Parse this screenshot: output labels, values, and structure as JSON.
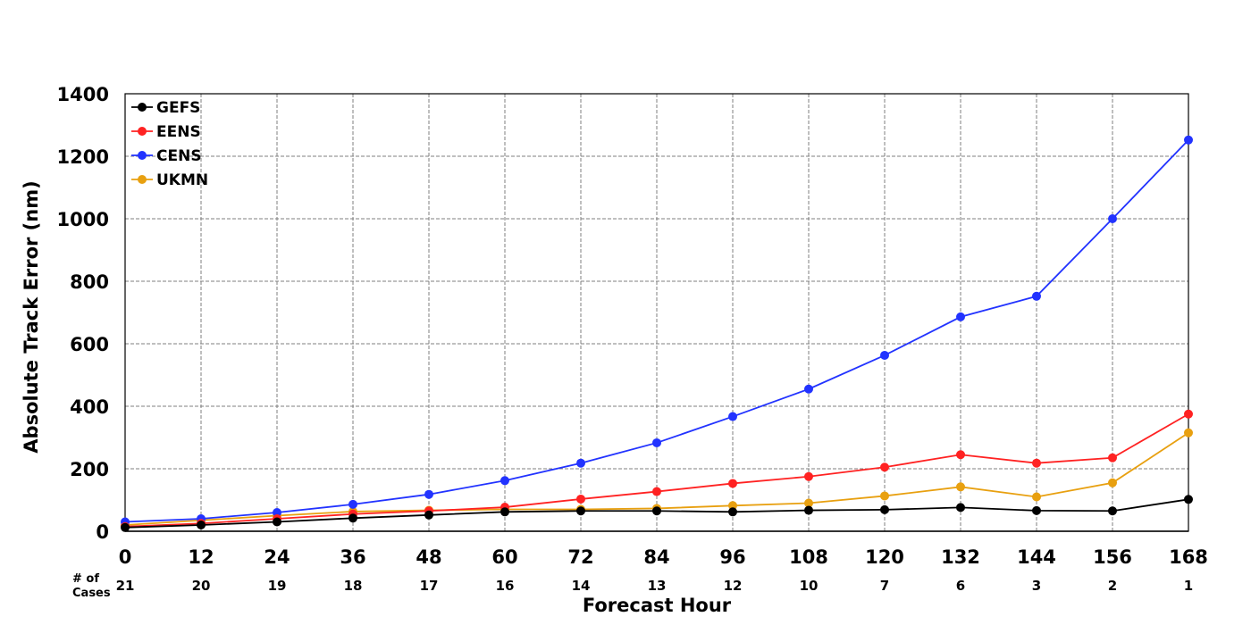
{
  "chart_data": {
    "type": "line",
    "title": "",
    "xlabel": "Forecast Hour",
    "ylabel": "Absolute Track Error (nm)",
    "x": [
      0,
      12,
      24,
      36,
      48,
      60,
      72,
      84,
      96,
      108,
      120,
      132,
      144,
      156,
      168
    ],
    "xlim": [
      0,
      168
    ],
    "ylim": [
      0,
      1400
    ],
    "yticks": [
      0,
      200,
      400,
      600,
      800,
      1000,
      1200,
      1400
    ],
    "grid": true,
    "legend_position": "top-left",
    "cases_label": [
      "# of",
      "Cases"
    ],
    "cases": [
      21,
      20,
      19,
      18,
      17,
      16,
      14,
      13,
      12,
      10,
      7,
      6,
      3,
      2,
      1
    ],
    "series": [
      {
        "name": "GEFS",
        "color": "#000000",
        "values": [
          12,
          20,
          30,
          42,
          52,
          62,
          65,
          65,
          62,
          67,
          69,
          76,
          66,
          65,
          102
        ]
      },
      {
        "name": "EENS",
        "color": "#ff2222",
        "values": [
          15,
          25,
          40,
          55,
          65,
          77,
          103,
          127,
          153,
          175,
          205,
          245,
          218,
          235,
          375
        ]
      },
      {
        "name": "CENS",
        "color": "#2233ff",
        "values": [
          30,
          40,
          60,
          86,
          118,
          162,
          218,
          283,
          367,
          455,
          563,
          686,
          752,
          1000,
          1252
        ]
      },
      {
        "name": "UKMN",
        "color": "#e8a010",
        "values": [
          20,
          35,
          50,
          63,
          67,
          70,
          70,
          73,
          82,
          90,
          113,
          142,
          110,
          155,
          315
        ]
      }
    ]
  }
}
